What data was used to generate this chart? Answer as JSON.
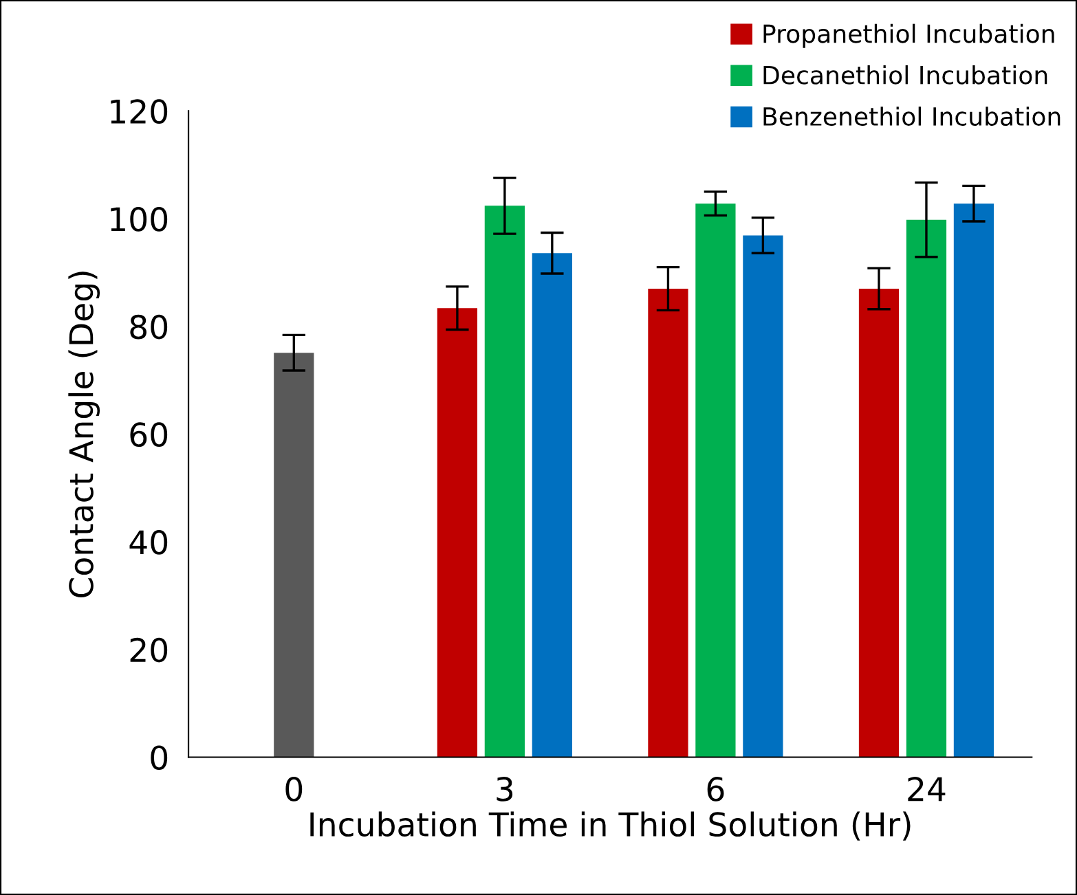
{
  "chart_data": {
    "type": "bar",
    "xlabel": "Incubation Time in Thiol Solution (Hr)",
    "ylabel": "Contact Angle (Deg)",
    "categories": [
      "0",
      "3",
      "6",
      "24"
    ],
    "series": [
      {
        "color": "#595959",
        "values": [
          75.1,
          null,
          null,
          null
        ],
        "errors": [
          3.3,
          null,
          null,
          null
        ]
      },
      {
        "name": "Propanethiol Incubation",
        "color": "#c00000",
        "values": [
          null,
          83.4,
          87.0,
          87.0
        ],
        "errors": [
          null,
          4.0,
          4.0,
          3.8
        ]
      },
      {
        "name": "Decanethiol Incubation",
        "color": "#00b050",
        "values": [
          null,
          102.4,
          102.8,
          99.8
        ],
        "errors": [
          null,
          5.2,
          2.2,
          6.9
        ]
      },
      {
        "name": "Benzenethiol Incubation",
        "color": "#0070c0",
        "values": [
          null,
          93.6,
          96.9,
          102.8
        ],
        "errors": [
          null,
          3.8,
          3.3,
          3.3
        ]
      }
    ],
    "ylim": [
      0,
      120
    ],
    "yticks": [
      0,
      20,
      40,
      60,
      80,
      100,
      120
    ],
    "grid": false,
    "legend": "top right"
  }
}
